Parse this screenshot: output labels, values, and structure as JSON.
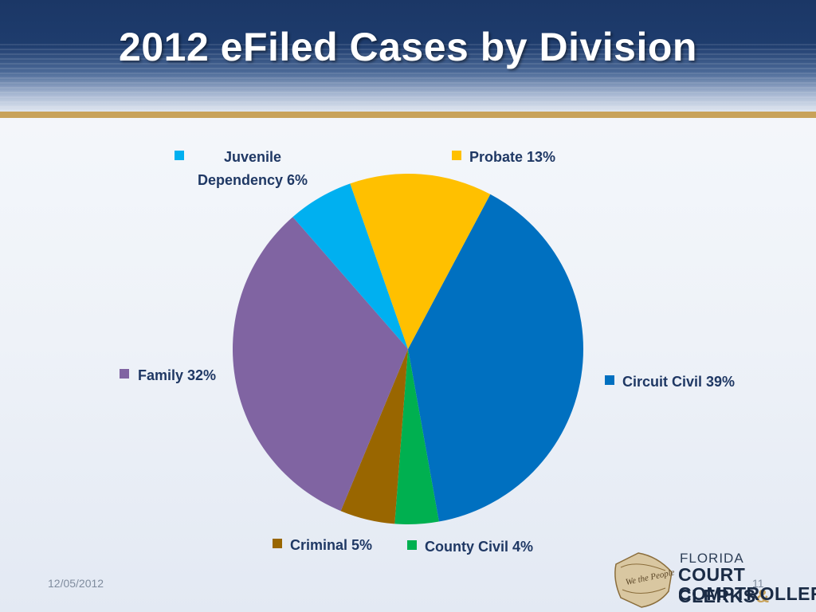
{
  "slide": {
    "title": "2012 eFiled Cases by Division",
    "date": "12/05/2012",
    "page_number": "11"
  },
  "logo": {
    "line1": "FLORIDA",
    "line2_main": "COURT CLERKS",
    "line2_amp": "&",
    "line3": "COMPTROLLERS",
    "seal_text": "We the People"
  },
  "colors": {
    "accent_gold": "#c8a25a",
    "header_navy": "#1b3766",
    "label_navy": "#1f3864"
  },
  "chart_data": {
    "type": "pie",
    "title": "2012 eFiled Cases by Division",
    "slices": [
      {
        "label": "Circuit Civil",
        "value": 39,
        "display": "Circuit Civil 39%",
        "color": "#0070c0"
      },
      {
        "label": "County Civil",
        "value": 4,
        "display": "County Civil 4%",
        "color": "#00b050"
      },
      {
        "label": "Criminal",
        "value": 5,
        "display": "Criminal 5%",
        "color": "#996600"
      },
      {
        "label": "Family",
        "value": 32,
        "display": "Family 32%",
        "color": "#8064a2"
      },
      {
        "label": "Juvenile Dependency",
        "value": 6,
        "display_lines": [
          "Juvenile",
          "Dependency 6%"
        ],
        "color": "#00b0f0"
      },
      {
        "label": "Probate",
        "value": 13,
        "display": "Probate 13%",
        "color": "#ffc000"
      }
    ],
    "start_angle_deg": 28,
    "direction": "clockwise",
    "legend": "labels around pie"
  }
}
